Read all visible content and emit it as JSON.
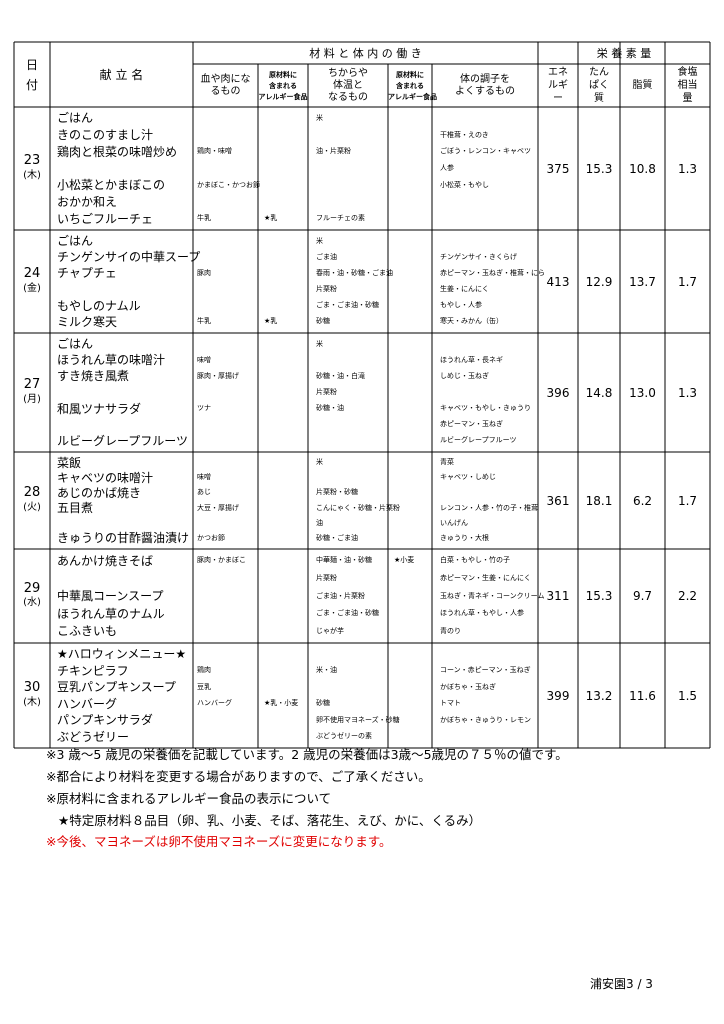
{
  "header": {
    "date": [
      "日",
      "付"
    ],
    "menu": "献 立 名",
    "materials": "材 料 と 体 内 の 働 き",
    "nutrition": "栄 養 素 量",
    "blood": [
      "血や肉にな",
      "るもの"
    ],
    "allergy": [
      "原材料に",
      "含まれる",
      "アレルギー食品"
    ],
    "energy_food": [
      "ちからや",
      "体温と",
      "なるもの"
    ],
    "body": [
      "体の調子を",
      "よくするもの"
    ],
    "energy": [
      "エネ",
      "ルギ",
      "ー"
    ],
    "protein": [
      "たん",
      "ぱく",
      "質"
    ],
    "fat": [
      "脂質"
    ],
    "salt": [
      "食塩",
      "相当",
      "量"
    ]
  },
  "days": [
    {
      "date": "23",
      "weekday": "(木)",
      "energy": "375",
      "protein": "15.3",
      "fat": "10.8",
      "salt": "1.3",
      "lines": [
        {
          "menu": "ごはん",
          "energy_food": "米"
        },
        {
          "menu": "きのこのすまし汁",
          "body": "干椎茸・えのき"
        },
        {
          "menu": "鶏肉と根菜の味噌炒め",
          "blood": "鶏肉・味噌",
          "energy_food": "油・片栗粉",
          "body": "ごぼう・レンコン・キャベツ"
        },
        {
          "body": "人参"
        },
        {
          "menu": "小松菜とかまぼこの",
          "blood": "かまぼこ・かつお節",
          "body": "小松菜・もやし"
        },
        {
          "menu": "おかか和え"
        },
        {
          "menu": "いちごフルーチェ",
          "blood": "牛乳",
          "allergy_a": "★乳",
          "energy_food": "フルーチェの素"
        }
      ]
    },
    {
      "date": "24",
      "weekday": "(金)",
      "energy": "413",
      "protein": "12.9",
      "fat": "13.7",
      "salt": "1.7",
      "lines": [
        {
          "menu": "ごはん",
          "energy_food": "米"
        },
        {
          "menu": "チンゲンサイの中華スープ",
          "energy_food": "ごま油",
          "body": "チンゲンサイ・きくらげ"
        },
        {
          "menu": "チャプチェ",
          "blood": "豚肉",
          "energy_food": "春雨・油・砂糖・ごま油",
          "body": "赤ピーマン・玉ねぎ・椎茸・にら"
        },
        {
          "energy_food": "片栗粉",
          "body": "生姜・にんにく"
        },
        {
          "menu": "もやしのナムル",
          "energy_food": "ごま・ごま油・砂糖",
          "body": "もやし・人参"
        },
        {
          "menu": "ミルク寒天",
          "blood": "牛乳",
          "allergy_a": "★乳",
          "energy_food": "砂糖",
          "body": "寒天・みかん（缶）"
        }
      ]
    },
    {
      "date": "27",
      "weekday": "(月)",
      "energy": "396",
      "protein": "14.8",
      "fat": "13.0",
      "salt": "1.3",
      "lines": [
        {
          "menu": "ごはん",
          "energy_food": "米"
        },
        {
          "menu": "ほうれん草の味噌汁",
          "blood": "味噌",
          "body": "ほうれん草・長ネギ"
        },
        {
          "menu": "すき焼き風煮",
          "blood": "豚肉・厚揚げ",
          "energy_food": "砂糖・油・白滝",
          "body": "しめじ・玉ねぎ"
        },
        {
          "energy_food": "片栗粉"
        },
        {
          "menu": "和風ツナサラダ",
          "blood": "ツナ",
          "energy_food": "砂糖・油",
          "body": "キャベツ・もやし・きゅうり"
        },
        {
          "body": "赤ピーマン・玉ねぎ"
        },
        {
          "menu": "ルビーグレープフルーツ",
          "body": "ルビーグレープフルーツ"
        }
      ]
    },
    {
      "date": "28",
      "weekday": "(火)",
      "energy": "361",
      "protein": "18.1",
      "fat": "6.2",
      "salt": "1.7",
      "lines": [
        {
          "menu": "菜飯",
          "energy_food": "米",
          "body": "青菜"
        },
        {
          "menu": "キャベツの味噌汁",
          "blood": "味噌",
          "body": "キャベツ・しめじ"
        },
        {
          "menu": "あじのかば焼き",
          "blood": "あじ",
          "energy_food": "片栗粉・砂糖"
        },
        {
          "menu": "五目煮",
          "blood": "大豆・厚揚げ",
          "energy_food": "こんにゃく・砂糖・片栗粉",
          "body": "レンコン・人参・竹の子・椎茸"
        },
        {
          "energy_food": "油",
          "body": "いんげん"
        },
        {
          "menu": "きゅうりの甘酢醤油漬け",
          "blood": "かつお節",
          "energy_food": "砂糖・ごま油",
          "body": "きゅうり・大根"
        }
      ]
    },
    {
      "date": "29",
      "weekday": "(水)",
      "energy": "311",
      "protein": "15.3",
      "fat": "9.7",
      "salt": "2.2",
      "lines": [
        {
          "menu": "あんかけ焼きそば",
          "blood": "豚肉・かまぼこ",
          "energy_food": "中華麺・油・砂糖",
          "allergy_b": "★小麦",
          "body": "白菜・もやし・竹の子"
        },
        {
          "energy_food": "片栗粉",
          "body": "赤ピーマン・生姜・にんにく"
        },
        {
          "menu": "中華風コーンスープ",
          "energy_food": "ごま油・片栗粉",
          "body": "玉ねぎ・青ネギ・コーンクリーム"
        },
        {
          "menu": "ほうれん草のナムル",
          "energy_food": "ごま・ごま油・砂糖",
          "body": "ほうれん草・もやし・人参"
        },
        {
          "menu": "こふきいも",
          "energy_food": "じゃが芋",
          "body": "青のり"
        }
      ]
    },
    {
      "date": "30",
      "weekday": "(木)",
      "energy": "399",
      "protein": "13.2",
      "fat": "11.6",
      "salt": "1.5",
      "lines": [
        {
          "menu": "★ハロウィンメニュー★"
        },
        {
          "menu": "チキンピラフ",
          "blood": "鶏肉",
          "energy_food": "米・油",
          "body": "コーン・赤ピーマン・玉ねぎ"
        },
        {
          "menu": "豆乳パンプキンスープ",
          "blood": "豆乳",
          "body": "かぼちゃ・玉ねぎ"
        },
        {
          "menu": "ハンバーグ",
          "blood": "ハンバーグ",
          "allergy_a": "★乳・小麦",
          "energy_food": "砂糖",
          "body": "トマト"
        },
        {
          "menu": "パンプキンサラダ",
          "energy_food": "卵不使用マヨネーズ・砂糖",
          "body": "かぼちゃ・きゅうり・レモン"
        },
        {
          "menu": "ぶどうゼリー",
          "energy_food": "ぶどうゼリーの素"
        }
      ]
    }
  ],
  "notes": [
    "※3 歳～5 歳児の栄養価を記載しています。2 歳児の栄養価は3歳～5歳児の７５％の値です。",
    "※都合により材料を変更する場合がありますので、ご了承ください。",
    "※原材料に含まれるアレルギー食品の表示について",
    "★特定原材料８品目（卵、乳、小麦、そば、落花生、えび、かに、くるみ）",
    "※今後、マヨネーズは卵不使用マヨネーズに変更になります。"
  ],
  "footer": "浦安園3 / 3"
}
